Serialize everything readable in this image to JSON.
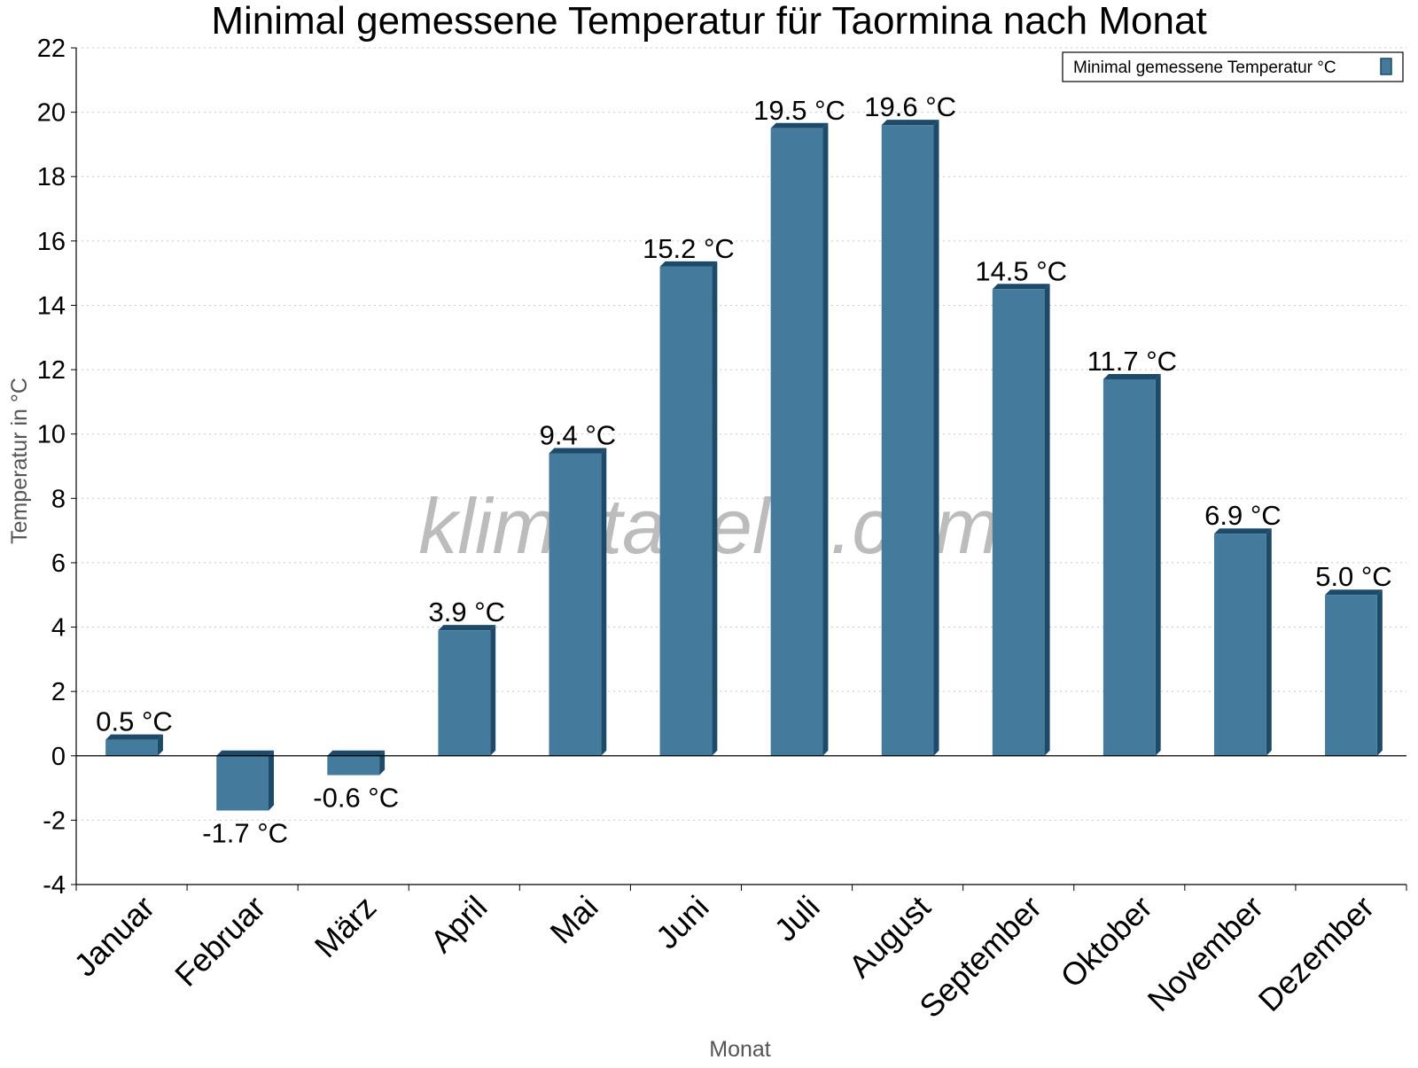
{
  "chart_data": {
    "type": "bar",
    "title": "Minimal gemessene Temperatur für Taormina nach Monat",
    "xlabel": "Monat",
    "ylabel": "Temperatur in °C",
    "ylim": [
      -4,
      22
    ],
    "yticks": [
      -4,
      -2,
      0,
      2,
      4,
      6,
      8,
      10,
      12,
      14,
      16,
      18,
      20,
      22
    ],
    "grid": true,
    "legend_position": "top-right",
    "unit": "°C",
    "categories": [
      "Januar",
      "Februar",
      "März",
      "April",
      "Mai",
      "Juni",
      "Juli",
      "August",
      "September",
      "Oktober",
      "November",
      "Dezember"
    ],
    "series": [
      {
        "name": "Minimal gemessene Temperatur °C",
        "values": [
          0.5,
          -1.7,
          -0.6,
          3.9,
          9.4,
          15.2,
          19.5,
          19.6,
          14.5,
          11.7,
          6.9,
          5.0
        ],
        "labels": [
          "0.5 °C",
          "-1.7 °C",
          "-0.6 °C",
          "3.9 °C",
          "9.4 °C",
          "15.2 °C",
          "19.5 °C",
          "19.6 °C",
          "14.5 °C",
          "11.7 °C",
          "6.9 °C",
          "5.0 °C"
        ]
      }
    ],
    "watermark": "klimatabelle.com"
  },
  "colors": {
    "bar_front": "#447b9c",
    "bar_side": "#1d4a69",
    "bar_top": "#1d4a69",
    "grid": "#c8c8c8",
    "axis": "#000000"
  }
}
